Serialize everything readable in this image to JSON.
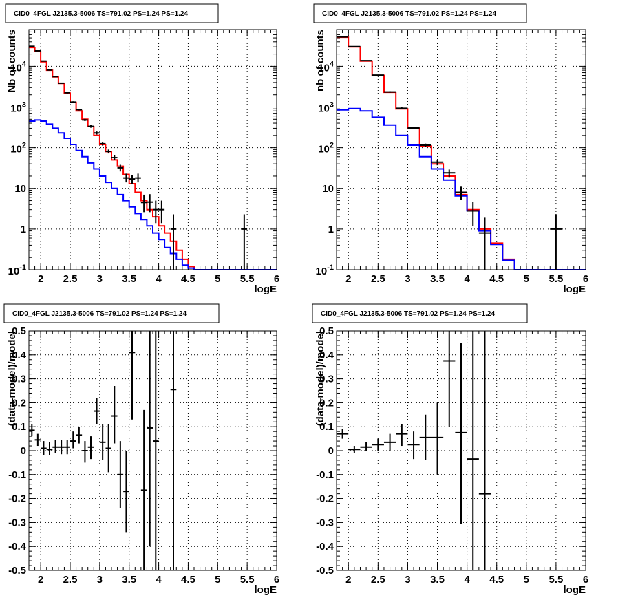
{
  "chart_data": [
    {
      "type": "histogram",
      "title": "CID0_4FGL J2135.3-5006 TS=791.02 PS=1.24 PS=1.24",
      "xlabel": "logE",
      "ylabel": "Nb of counts",
      "xlim": [
        1.8,
        6.0
      ],
      "ylim": [
        0.1,
        80000
      ],
      "yscale": "log",
      "grid": true,
      "x_ticks": [
        "2",
        "2.5",
        "3",
        "3.5",
        "4",
        "4.5",
        "5",
        "5.5",
        "6"
      ],
      "y_ticks": [
        "10^-1",
        "1",
        "10",
        "10^2",
        "10^3",
        "10^4"
      ],
      "series": [
        {
          "color": "#ff0000",
          "kind": "step",
          "edges": [
            1.8,
            1.9,
            2.0,
            2.1,
            2.2,
            2.3,
            2.4,
            2.5,
            2.6,
            2.7,
            2.8,
            2.9,
            3.0,
            3.1,
            3.2,
            3.3,
            3.4,
            3.5,
            3.6,
            3.7,
            3.8,
            3.9,
            4.0,
            4.1,
            4.2,
            4.3,
            4.4,
            4.5,
            4.6,
            6.0
          ],
          "values": [
            29000,
            23000,
            13000,
            8000,
            5500,
            3800,
            2200,
            1300,
            800,
            500,
            330,
            200,
            120,
            80,
            50,
            35,
            22,
            13,
            8,
            5,
            3,
            2,
            1.2,
            0.8,
            0.5,
            0.3,
            0.18,
            0.12,
            0.1
          ]
        },
        {
          "color": "#0000ff",
          "kind": "step",
          "edges": [
            1.8,
            1.9,
            2.0,
            2.1,
            2.2,
            2.3,
            2.4,
            2.5,
            2.6,
            2.7,
            2.8,
            2.9,
            3.0,
            3.1,
            3.2,
            3.3,
            3.4,
            3.5,
            3.6,
            3.7,
            3.8,
            3.9,
            4.0,
            4.1,
            4.2,
            4.3,
            4.4,
            4.5,
            4.6,
            6.0
          ],
          "values": [
            450,
            480,
            450,
            380,
            300,
            230,
            170,
            120,
            85,
            60,
            42,
            30,
            20,
            14,
            10,
            7,
            5,
            3.5,
            2.4,
            1.7,
            1.2,
            0.8,
            0.55,
            0.35,
            0.25,
            0.18,
            0.13,
            0.11,
            0.1
          ]
        },
        {
          "color": "#000000",
          "kind": "errorbar",
          "points": [
            {
              "x": 1.85,
              "y": 31000,
              "lo": 30500,
              "hi": 31500
            },
            {
              "x": 1.95,
              "y": 24000,
              "lo": 23500,
              "hi": 24500
            },
            {
              "x": 2.05,
              "y": 13500,
              "lo": 13200,
              "hi": 13800
            },
            {
              "x": 2.15,
              "y": 8100,
              "lo": 7900,
              "hi": 8300
            },
            {
              "x": 2.25,
              "y": 5600,
              "lo": 5450,
              "hi": 5750
            },
            {
              "x": 2.35,
              "y": 3850,
              "lo": 3750,
              "hi": 3950
            },
            {
              "x": 2.45,
              "y": 2250,
              "lo": 2150,
              "hi": 2350
            },
            {
              "x": 2.55,
              "y": 1320,
              "lo": 1260,
              "hi": 1380
            },
            {
              "x": 2.65,
              "y": 860,
              "lo": 820,
              "hi": 900
            },
            {
              "x": 2.75,
              "y": 480,
              "lo": 450,
              "hi": 510
            },
            {
              "x": 2.85,
              "y": 335,
              "lo": 310,
              "hi": 360
            },
            {
              "x": 2.95,
              "y": 230,
              "lo": 210,
              "hi": 250
            },
            {
              "x": 3.05,
              "y": 125,
              "lo": 112,
              "hi": 138
            },
            {
              "x": 3.15,
              "y": 81,
              "lo": 72,
              "hi": 90
            },
            {
              "x": 3.25,
              "y": 57,
              "lo": 50,
              "hi": 65
            },
            {
              "x": 3.35,
              "y": 32,
              "lo": 26,
              "hi": 38
            },
            {
              "x": 3.45,
              "y": 18,
              "lo": 14,
              "hi": 23
            },
            {
              "x": 3.55,
              "y": 17,
              "lo": 13,
              "hi": 21
            },
            {
              "x": 3.65,
              "y": 18,
              "lo": 14,
              "hi": 23
            },
            {
              "x": 3.75,
              "y": 4.5,
              "lo": 2.6,
              "hi": 7
            },
            {
              "x": 3.85,
              "y": 4.6,
              "lo": 2.6,
              "hi": 7.2
            },
            {
              "x": 3.95,
              "y": 3,
              "lo": 1.4,
              "hi": 5
            },
            {
              "x": 4.05,
              "y": 3,
              "lo": 1.4,
              "hi": 5
            },
            {
              "x": 4.25,
              "y": 1,
              "lo": 0.1,
              "hi": 2.3
            },
            {
              "x": 5.45,
              "y": 1,
              "lo": 0.1,
              "hi": 2.3
            }
          ]
        }
      ]
    },
    {
      "type": "histogram",
      "title": "CID0_4FGL J2135.3-5006 TS=791.02 PS=1.24 PS=1.24",
      "xlabel": "logE",
      "ylabel": "nb of counts",
      "xlim": [
        1.8,
        6.0
      ],
      "ylim": [
        0.1,
        80000
      ],
      "yscale": "log",
      "grid": true,
      "x_ticks": [
        "2",
        "2.5",
        "3",
        "3.5",
        "4",
        "4.5",
        "5",
        "5.5",
        "6"
      ],
      "y_ticks": [
        "10^-1",
        "1",
        "10",
        "10^2",
        "10^3",
        "10^4"
      ],
      "series": [
        {
          "color": "#ff0000",
          "kind": "step",
          "edges": [
            1.8,
            2.0,
            2.2,
            2.4,
            2.6,
            2.8,
            3.0,
            3.2,
            3.4,
            3.6,
            3.8,
            4.0,
            4.2,
            4.4,
            4.6,
            4.8,
            6.0
          ],
          "values": [
            52000,
            30000,
            13500,
            6000,
            2300,
            900,
            300,
            110,
            40,
            20,
            7,
            3,
            1,
            0.45,
            0.18,
            0.1
          ]
        },
        {
          "color": "#0000ff",
          "kind": "step",
          "edges": [
            1.8,
            2.0,
            2.2,
            2.4,
            2.6,
            2.8,
            3.0,
            3.2,
            3.4,
            3.6,
            3.8,
            4.0,
            4.2,
            4.4,
            4.6,
            4.8,
            6.0
          ],
          "values": [
            850,
            920,
            800,
            560,
            360,
            200,
            115,
            60,
            30,
            16,
            6.5,
            2.8,
            0.9,
            0.42,
            0.17,
            0.1
          ]
        },
        {
          "color": "#000000",
          "kind": "errorbar",
          "points": [
            {
              "x": 1.9,
              "y": 53000,
              "lo": 52500,
              "hi": 53500
            },
            {
              "x": 2.1,
              "y": 30500,
              "lo": 30100,
              "hi": 30900
            },
            {
              "x": 2.3,
              "y": 13800,
              "lo": 13550,
              "hi": 14050
            },
            {
              "x": 2.5,
              "y": 6100,
              "lo": 5950,
              "hi": 6250
            },
            {
              "x": 2.7,
              "y": 2350,
              "lo": 2250,
              "hi": 2450
            },
            {
              "x": 2.9,
              "y": 930,
              "lo": 880,
              "hi": 980
            },
            {
              "x": 3.1,
              "y": 305,
              "lo": 285,
              "hi": 325
            },
            {
              "x": 3.3,
              "y": 115,
              "lo": 104,
              "hi": 126
            },
            {
              "x": 3.5,
              "y": 44,
              "lo": 37,
              "hi": 51
            },
            {
              "x": 3.7,
              "y": 24,
              "lo": 19,
              "hi": 29
            },
            {
              "x": 3.9,
              "y": 8,
              "lo": 5.2,
              "hi": 11
            },
            {
              "x": 4.1,
              "y": 2.8,
              "lo": 1.2,
              "hi": 4.6
            },
            {
              "x": 4.3,
              "y": 0.8,
              "lo": 0.1,
              "hi": 1.9
            },
            {
              "x": 5.5,
              "y": 1,
              "lo": 0.1,
              "hi": 2.3
            }
          ]
        }
      ]
    },
    {
      "type": "scatter",
      "title": "CID0_4FGL J2135.3-5006 TS=791.02 PS=1.24 PS=1.24",
      "xlabel": "logE",
      "ylabel": "(data-model)/model",
      "xlim": [
        1.8,
        6.0
      ],
      "ylim": [
        -0.5,
        0.5
      ],
      "grid": true,
      "x_ticks": [
        "2",
        "2.5",
        "3",
        "3.5",
        "4",
        "4.5",
        "5",
        "5.5",
        "6"
      ],
      "y_ticks": [
        "-0.5",
        "-0.4",
        "-0.3",
        "-0.2",
        "-0.1",
        "0",
        "0.1",
        "0.2",
        "0.3",
        "0.4",
        "0.5"
      ],
      "series": [
        {
          "color": "#000000",
          "kind": "errorbar",
          "points": [
            {
              "x": 1.85,
              "y": 0.085,
              "lo": 0.06,
              "hi": 0.11
            },
            {
              "x": 1.95,
              "y": 0.045,
              "lo": 0.02,
              "hi": 0.07
            },
            {
              "x": 2.05,
              "y": 0.01,
              "lo": -0.02,
              "hi": 0.04
            },
            {
              "x": 2.15,
              "y": 0.005,
              "lo": -0.02,
              "hi": 0.035
            },
            {
              "x": 2.25,
              "y": 0.015,
              "lo": -0.01,
              "hi": 0.045
            },
            {
              "x": 2.35,
              "y": 0.015,
              "lo": -0.015,
              "hi": 0.045
            },
            {
              "x": 2.45,
              "y": 0.015,
              "lo": -0.015,
              "hi": 0.045
            },
            {
              "x": 2.55,
              "y": 0.04,
              "lo": 0.01,
              "hi": 0.08
            },
            {
              "x": 2.65,
              "y": 0.065,
              "lo": 0.03,
              "hi": 0.1
            },
            {
              "x": 2.75,
              "y": 0.0,
              "lo": -0.05,
              "hi": 0.04
            },
            {
              "x": 2.85,
              "y": 0.015,
              "lo": -0.035,
              "hi": 0.06
            },
            {
              "x": 2.95,
              "y": 0.165,
              "lo": 0.11,
              "hi": 0.22
            },
            {
              "x": 3.05,
              "y": 0.035,
              "lo": -0.04,
              "hi": 0.11
            },
            {
              "x": 3.15,
              "y": 0.01,
              "lo": -0.09,
              "hi": 0.11
            },
            {
              "x": 3.25,
              "y": 0.145,
              "lo": 0.03,
              "hi": 0.27
            },
            {
              "x": 3.35,
              "y": -0.1,
              "lo": -0.24,
              "hi": 0.04
            },
            {
              "x": 3.45,
              "y": -0.17,
              "lo": -0.34,
              "hi": 0.0
            },
            {
              "x": 3.55,
              "y": 0.41,
              "lo": 0.13,
              "hi": 0.5
            },
            {
              "x": 3.75,
              "y": -0.165,
              "lo": -0.5,
              "hi": 0.17
            },
            {
              "x": 3.85,
              "y": 0.095,
              "lo": -0.4,
              "hi": 0.5
            },
            {
              "x": 3.95,
              "y": 0.04,
              "lo": -0.5,
              "hi": 0.5
            },
            {
              "x": 4.25,
              "y": 0.255,
              "lo": -0.5,
              "hi": 0.5
            }
          ]
        }
      ]
    },
    {
      "type": "scatter",
      "title": "CID0_4FGL J2135.3-5006 TS=791.02 PS=1.24 PS=1.24",
      "xlabel": "logE",
      "ylabel": "(data-model)/model",
      "xlim": [
        1.8,
        6.0
      ],
      "ylim": [
        -0.5,
        0.5
      ],
      "grid": true,
      "x_ticks": [
        "2",
        "2.5",
        "3",
        "3.5",
        "4",
        "4.5",
        "5",
        "5.5",
        "6"
      ],
      "y_ticks": [
        "-0.5",
        "-0.4",
        "-0.3",
        "-0.2",
        "-0.1",
        "0",
        "0.1",
        "0.2",
        "0.3",
        "0.4",
        "0.5"
      ],
      "series": [
        {
          "color": "#000000",
          "kind": "errorbar",
          "points": [
            {
              "x": 1.9,
              "y": 0.07,
              "lo": 0.05,
              "hi": 0.09
            },
            {
              "x": 2.1,
              "y": 0.005,
              "lo": -0.01,
              "hi": 0.02
            },
            {
              "x": 2.3,
              "y": 0.015,
              "lo": 0.0,
              "hi": 0.035
            },
            {
              "x": 2.5,
              "y": 0.025,
              "lo": 0.0,
              "hi": 0.05
            },
            {
              "x": 2.7,
              "y": 0.035,
              "lo": 0.0,
              "hi": 0.07
            },
            {
              "x": 2.9,
              "y": 0.07,
              "lo": 0.02,
              "hi": 0.11
            },
            {
              "x": 3.1,
              "y": 0.025,
              "lo": -0.035,
              "hi": 0.08
            },
            {
              "x": 3.3,
              "y": 0.055,
              "lo": -0.04,
              "hi": 0.15
            },
            {
              "x": 3.5,
              "y": 0.055,
              "lo": -0.1,
              "hi": 0.2
            },
            {
              "x": 3.7,
              "y": 0.375,
              "lo": 0.1,
              "hi": 0.5
            },
            {
              "x": 3.9,
              "y": 0.075,
              "lo": -0.305,
              "hi": 0.45
            },
            {
              "x": 4.1,
              "y": -0.035,
              "lo": -0.5,
              "hi": 0.5
            },
            {
              "x": 4.3,
              "y": -0.18,
              "lo": -0.5,
              "hi": 0.5
            }
          ]
        }
      ]
    }
  ]
}
